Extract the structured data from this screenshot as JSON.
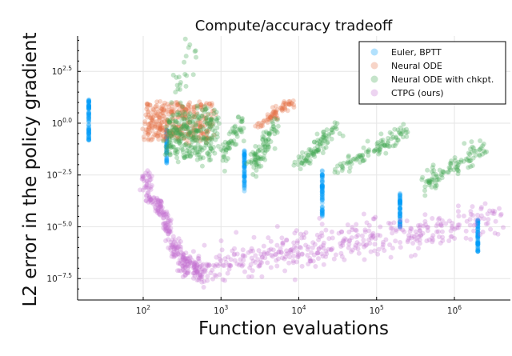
{
  "chart_data": {
    "type": "scatter",
    "title": "Compute/accuracy tradeoff",
    "xlabel": "Function evaluations",
    "ylabel": "L2 error in the policy gradient",
    "xscale": "log",
    "yscale": "log",
    "xlim": [
      14,
      5300000
    ],
    "ylim": [
      3e-09,
      16000
    ],
    "grid": true,
    "legend_position": "top-right",
    "xticks": [
      {
        "value": 100,
        "base": "10",
        "exp": "2"
      },
      {
        "value": 1000,
        "base": "10",
        "exp": "3"
      },
      {
        "value": 10000,
        "base": "10",
        "exp": "4"
      },
      {
        "value": 100000,
        "base": "10",
        "exp": "5"
      },
      {
        "value": 1000000,
        "base": "10",
        "exp": "6"
      }
    ],
    "yticks": [
      {
        "value": 316.23,
        "base": "10",
        "exp": "2.5"
      },
      {
        "value": 1,
        "base": "10",
        "exp": "0.0"
      },
      {
        "value": 0.0031623,
        "base": "10",
        "exp": "−2.5"
      },
      {
        "value": 1e-05,
        "base": "10",
        "exp": "−5.0"
      },
      {
        "value": 3.1623e-08,
        "base": "10",
        "exp": "−7.5"
      }
    ],
    "series": [
      {
        "name": "Euler, BPTT",
        "color": "#009AFA",
        "clusters": [
          {
            "x": [
              20,
              20
            ],
            "y": [
              0.15,
              16
            ],
            "spread": 0.02,
            "n": 70
          },
          {
            "x": [
              200,
              200
            ],
            "y": [
              0.012,
              0.5
            ],
            "spread": 0.02,
            "n": 50
          },
          {
            "x": [
              2000,
              2000
            ],
            "y": [
              0.0005,
              0.05
            ],
            "spread": 0.02,
            "n": 60
          },
          {
            "x": [
              20000,
              20000
            ],
            "y": [
              3e-05,
              0.005
            ],
            "spread": 0.02,
            "n": 60
          },
          {
            "x": [
              200000,
              200000
            ],
            "y": [
              1e-05,
              0.0004
            ],
            "spread": 0.02,
            "n": 60
          },
          {
            "x": [
              2000000,
              2000000
            ],
            "y": [
              6e-07,
              2.5e-05
            ],
            "spread": 0.02,
            "n": 60
          }
        ]
      },
      {
        "name": "Neural ODE",
        "color": "#E36F47",
        "clusters": [
          {
            "x": [
              115,
              120
            ],
            "y": [
              0.16,
              10
            ],
            "spread": 0.08,
            "n": 35
          },
          {
            "x": [
              135,
              140
            ],
            "y": [
              0.16,
              10
            ],
            "spread": 0.08,
            "n": 35
          },
          {
            "x": [
              160,
              168
            ],
            "y": [
              0.16,
              10
            ],
            "spread": 0.08,
            "n": 35
          },
          {
            "x": [
              190,
              200
            ],
            "y": [
              0.16,
              10
            ],
            "spread": 0.08,
            "n": 35
          },
          {
            "x": [
              230,
              245
            ],
            "y": [
              0.16,
              10
            ],
            "spread": 0.08,
            "n": 35
          },
          {
            "x": [
              280,
              300
            ],
            "y": [
              0.16,
              10
            ],
            "spread": 0.08,
            "n": 35
          },
          {
            "x": [
              340,
              370
            ],
            "y": [
              0.16,
              10
            ],
            "spread": 0.08,
            "n": 35
          },
          {
            "x": [
              420,
              470
            ],
            "y": [
              0.16,
              10
            ],
            "spread": 0.08,
            "n": 35
          },
          {
            "x": [
              520,
              590
            ],
            "y": [
              0.16,
              10
            ],
            "spread": 0.08,
            "n": 35
          },
          {
            "x": [
              650,
              760
            ],
            "y": [
              0.16,
              10
            ],
            "spread": 0.08,
            "n": 35
          },
          {
            "x": [
              3000,
              8000
            ],
            "y": [
              0.6,
              12
            ],
            "spread": 0.1,
            "n": 70
          }
        ]
      },
      {
        "name": "Neural ODE with chkpt.",
        "color": "#3EA44E",
        "clusters": [
          {
            "x": [
              210,
              230
            ],
            "y": [
              0.02,
              4
            ],
            "spread": 0.15,
            "n": 40
          },
          {
            "x": [
              260,
              280
            ],
            "y": [
              0.02,
              4
            ],
            "spread": 0.15,
            "n": 40
          },
          {
            "x": [
              320,
              345
            ],
            "y": [
              0.02,
              4
            ],
            "spread": 0.15,
            "n": 40
          },
          {
            "x": [
              390,
              420
            ],
            "y": [
              0.02,
              4
            ],
            "spread": 0.15,
            "n": 40
          },
          {
            "x": [
              480,
              520
            ],
            "y": [
              0.02,
              4
            ],
            "spread": 0.15,
            "n": 40
          },
          {
            "x": [
              600,
              660
            ],
            "y": [
              0.02,
              4
            ],
            "spread": 0.15,
            "n": 40
          },
          {
            "x": [
              750,
              830
            ],
            "y": [
              0.02,
              4
            ],
            "spread": 0.15,
            "n": 40
          },
          {
            "x": [
              1000,
              2000
            ],
            "y": [
              0.03,
              1.5
            ],
            "spread": 0.3,
            "n": 60
          },
          {
            "x": [
              2500,
              5000
            ],
            "y": [
              0.006,
              0.8
            ],
            "spread": 0.25,
            "n": 90
          },
          {
            "x": [
              10000,
              30000
            ],
            "y": [
              0.008,
              0.6
            ],
            "spread": 0.2,
            "n": 90
          },
          {
            "x": [
              30000,
              250000
            ],
            "y": [
              0.006,
              0.35
            ],
            "spread": 0.2,
            "n": 100
          },
          {
            "x": [
              400000,
              2500000
            ],
            "y": [
              0.001,
              0.06
            ],
            "spread": 0.25,
            "n": 100
          },
          {
            "x": [
              250,
              420
            ],
            "y": [
              5,
              8000
            ],
            "spread": 0.4,
            "n": 25
          }
        ]
      },
      {
        "name": "CTPG (ours)",
        "color": "#C371D2",
        "clusters": [
          {
            "x": [
              112,
              118
            ],
            "y": [
              0.004,
              0.00015
            ],
            "spread": 0.1,
            "n": 45
          },
          {
            "x": [
              145,
              170
            ],
            "y": [
              0.0002,
              4e-05
            ],
            "spread": 0.1,
            "n": 45
          },
          {
            "x": [
              195,
              215
            ],
            "y": [
              5e-05,
              4e-06
            ],
            "spread": 0.1,
            "n": 45
          },
          {
            "x": [
              240,
              270
            ],
            "y": [
              3e-06,
              4e-07
            ],
            "spread": 0.1,
            "n": 45
          },
          {
            "x": [
              320,
              370
            ],
            "y": [
              5e-07,
              5e-08
            ],
            "spread": 0.12,
            "n": 55
          },
          {
            "x": [
              440,
              560
            ],
            "y": [
              3e-07,
              3e-08
            ],
            "spread": 0.15,
            "n": 60
          },
          {
            "x": [
              600,
              4000000
            ],
            "y": [
              1e-07,
              3e-05
            ],
            "spread": 0.45,
            "n": 420
          }
        ]
      }
    ]
  }
}
